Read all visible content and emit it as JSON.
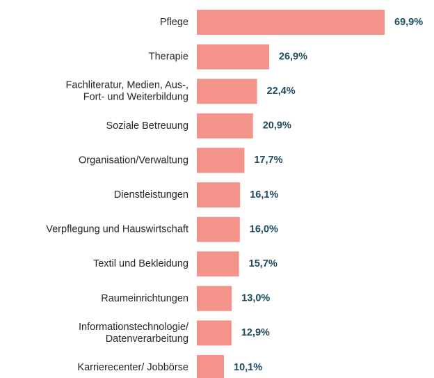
{
  "chart_data": {
    "type": "bar",
    "orientation": "horizontal",
    "color": "#f3938a",
    "categories": [
      "Pflege",
      "Therapie",
      "Fachliteratur, Medien, Aus-,\nFort- und Weiterbildung",
      "Soziale Betreuung",
      "Organisation/Verwaltung",
      "Dienstleistungen",
      "Verpflegung und Hauswirtschaft",
      "Textil und Bekleidung",
      "Raumeinrichtungen",
      "Informationstechnologie/\nDatenverarbeitung",
      "Karrierecenter/ Jobbörse"
    ],
    "values": [
      69.9,
      26.9,
      22.4,
      20.9,
      17.7,
      16.1,
      16.0,
      15.7,
      13.0,
      12.9,
      10.1
    ],
    "value_labels": [
      "69,9%",
      "26,9%",
      "22,4%",
      "20,9%",
      "17,7%",
      "16,1%",
      "16,0%",
      "15,7%",
      "13,0%",
      "12,9%",
      "10,1%"
    ]
  }
}
